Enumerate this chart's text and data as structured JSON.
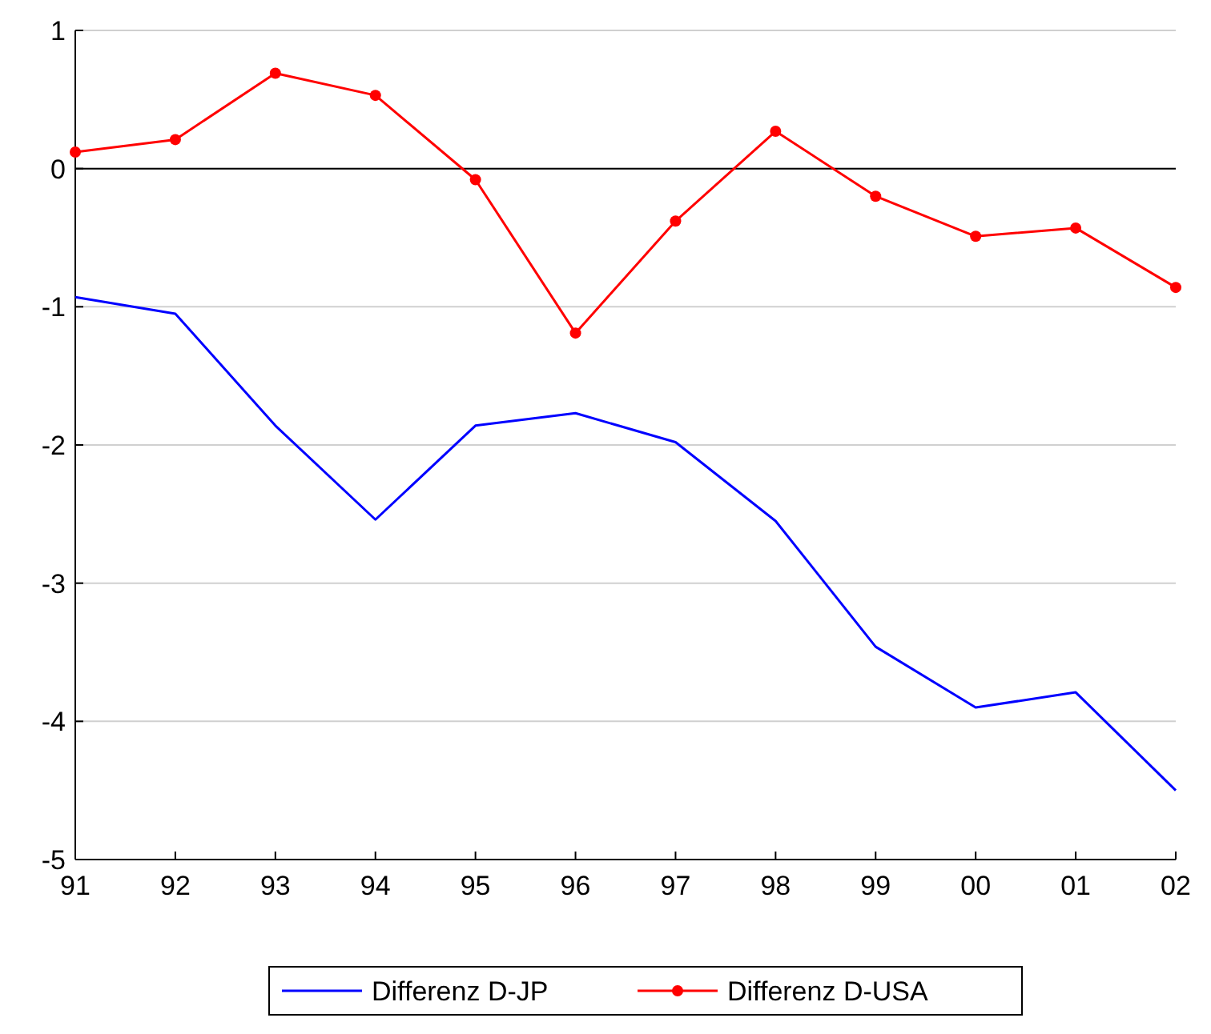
{
  "chart_data": {
    "type": "line",
    "categories": [
      "91",
      "92",
      "93",
      "94",
      "95",
      "96",
      "97",
      "98",
      "99",
      "00",
      "01",
      "02"
    ],
    "series": [
      {
        "name": "Differenz D-JP",
        "color": "#0000ff",
        "marker": "none",
        "values": [
          -0.93,
          -1.05,
          -1.86,
          -2.54,
          -1.86,
          -1.77,
          -1.98,
          -2.55,
          -3.46,
          -3.9,
          -3.79,
          -4.5
        ]
      },
      {
        "name": "Differenz D-USA",
        "color": "#ff0000",
        "marker": "circle",
        "values": [
          0.12,
          0.21,
          0.69,
          0.53,
          -0.08,
          -1.19,
          -0.38,
          0.27,
          -0.2,
          -0.49,
          -0.43,
          -0.86
        ]
      }
    ],
    "ylim": [
      -5,
      1
    ],
    "yticks": [
      -5,
      -4,
      -3,
      -2,
      -1,
      0,
      1
    ],
    "grid": "y",
    "legend": "bottom",
    "ref_lines": [
      {
        "axis": "y",
        "value": 0,
        "color": "#000000"
      }
    ]
  }
}
